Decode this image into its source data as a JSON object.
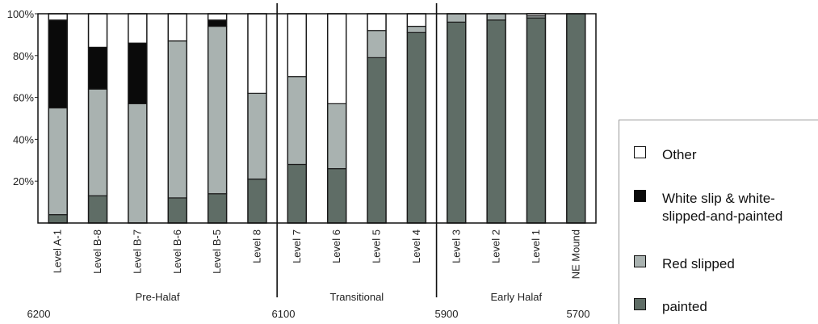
{
  "chart_data": {
    "type": "bar",
    "stacked": true,
    "ylim": [
      0,
      100
    ],
    "yticks": [
      "20%",
      "40%",
      "60%",
      "80%",
      "100%"
    ],
    "ytick_values": [
      20,
      40,
      60,
      80,
      100
    ],
    "categories": [
      "Level A-1",
      "Level B-8",
      "Level B-7",
      "Level B-6",
      "Level B-5",
      "Level 8",
      "Level 7",
      "Level 6",
      "Level 5",
      "Level 4",
      "Level 3",
      "Level 2",
      "Level 1",
      "NE Mound"
    ],
    "series": [
      {
        "name": "painted",
        "color": "#5f6d66",
        "values": [
          4,
          13,
          0,
          12,
          14,
          21,
          28,
          26,
          79,
          91,
          96,
          97,
          98,
          100
        ]
      },
      {
        "name": "Red slipped",
        "color": "#a9b2b0",
        "values": [
          51,
          51,
          57,
          75,
          80,
          41,
          42,
          31,
          13,
          3,
          4,
          3,
          1,
          0
        ]
      },
      {
        "name": "White slip & white-slipped-and-painted",
        "color": "#0a0a0a",
        "values": [
          42,
          20,
          29,
          0,
          3,
          0,
          0,
          0,
          0,
          0,
          0,
          0,
          0,
          0
        ]
      },
      {
        "name": "Other",
        "color": "#ffffff",
        "values": [
          3,
          16,
          14,
          13,
          3,
          38,
          30,
          43,
          8,
          6,
          0,
          0,
          1,
          0
        ]
      }
    ],
    "periods": [
      {
        "label": "Pre-Halaf",
        "start_year": "6200",
        "end_year": "6100",
        "categories": 6
      },
      {
        "label": "Transitional",
        "start_year": "6100",
        "end_year": "5900",
        "categories": 4
      },
      {
        "label": "Early Halaf",
        "start_year": "5900",
        "end_year": "5700",
        "categories": 4
      }
    ],
    "year_labels": [
      "6200",
      "6100",
      "5900",
      "5700"
    ],
    "legend": {
      "placement": "bottom-right",
      "items": [
        {
          "label": "Other",
          "color": "#ffffff"
        },
        {
          "label_line1": "White slip & white-",
          "label_line2": "slipped-and-painted",
          "color": "#0a0a0a"
        },
        {
          "label": "Red slipped",
          "color": "#a9b2b0"
        },
        {
          "label": "painted",
          "color": "#5f6d66"
        }
      ]
    }
  }
}
